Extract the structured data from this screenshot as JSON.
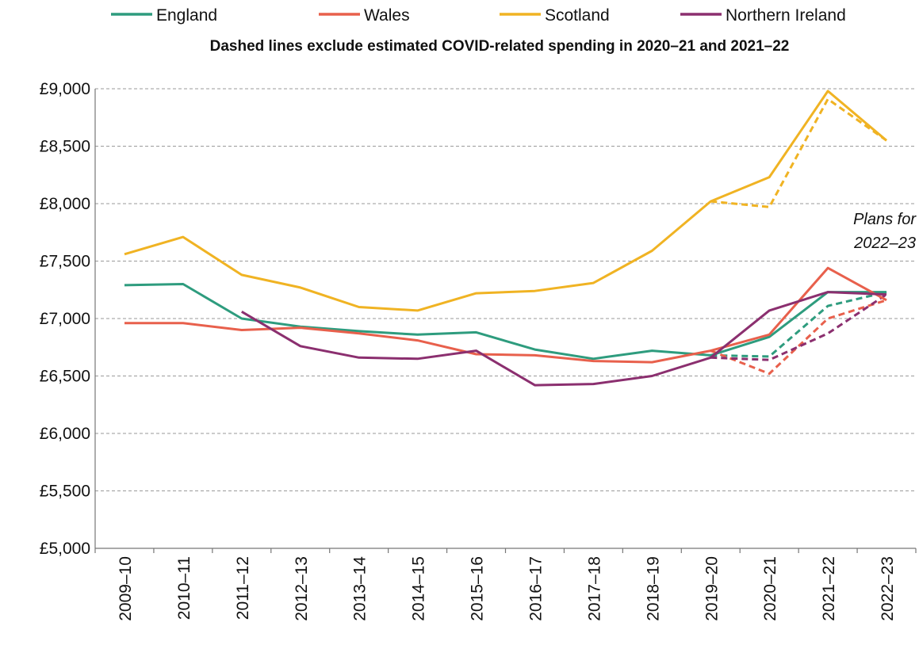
{
  "chart_data": {
    "type": "line",
    "subtitle": "Dashed lines exclude estimated COVID-related spending in 2020–21 and 2021–22",
    "annotation": [
      "Plans for",
      "2022–23"
    ],
    "categories": [
      "2009–10",
      "2010–11",
      "2011–12",
      "2012–13",
      "2013–14",
      "2014–15",
      "2015–16",
      "2016–17",
      "2017–18",
      "2018–19",
      "2019–20",
      "2020–21",
      "2021–22",
      "2022–23"
    ],
    "y_ticks": [
      "£5,000",
      "£5,500",
      "£6,000",
      "£6,500",
      "£7,000",
      "£7,500",
      "£8,000",
      "£8,500",
      "£9,000"
    ],
    "ylim": [
      5000,
      9000
    ],
    "y_step": 500,
    "grid": "horizontal dashed",
    "legend_position": "top",
    "series": [
      {
        "name": "England",
        "color": "#2e9c7e",
        "values": [
          7290,
          7300,
          7000,
          6930,
          6890,
          6860,
          6880,
          6730,
          6650,
          6720,
          6680,
          6840,
          7230,
          7230
        ],
        "dashed": [
          null,
          null,
          null,
          null,
          null,
          null,
          null,
          null,
          null,
          null,
          6680,
          6670,
          7110,
          7230
        ]
      },
      {
        "name": "Wales",
        "color": "#e8604c",
        "values": [
          6960,
          6960,
          6900,
          6920,
          6870,
          6810,
          6690,
          6680,
          6630,
          6620,
          6720,
          6860,
          7440,
          7160
        ],
        "dashed": [
          null,
          null,
          null,
          null,
          null,
          null,
          null,
          null,
          null,
          null,
          6720,
          6520,
          7000,
          7160
        ]
      },
      {
        "name": "Scotland",
        "color": "#f0b323",
        "values": [
          7560,
          7710,
          7380,
          7270,
          7100,
          7070,
          7220,
          7240,
          7310,
          7590,
          8020,
          8230,
          8980,
          8550
        ],
        "dashed": [
          null,
          null,
          null,
          null,
          null,
          null,
          null,
          null,
          null,
          null,
          8020,
          7970,
          8910,
          8550
        ]
      },
      {
        "name": "Northern Ireland",
        "color": "#8b2f6f",
        "values": [
          null,
          null,
          7060,
          6760,
          6660,
          6650,
          6720,
          6420,
          6430,
          6500,
          6660,
          7070,
          7230,
          7210
        ],
        "dashed": [
          null,
          null,
          null,
          null,
          null,
          null,
          null,
          null,
          null,
          null,
          6660,
          6640,
          6870,
          7210
        ]
      }
    ]
  }
}
